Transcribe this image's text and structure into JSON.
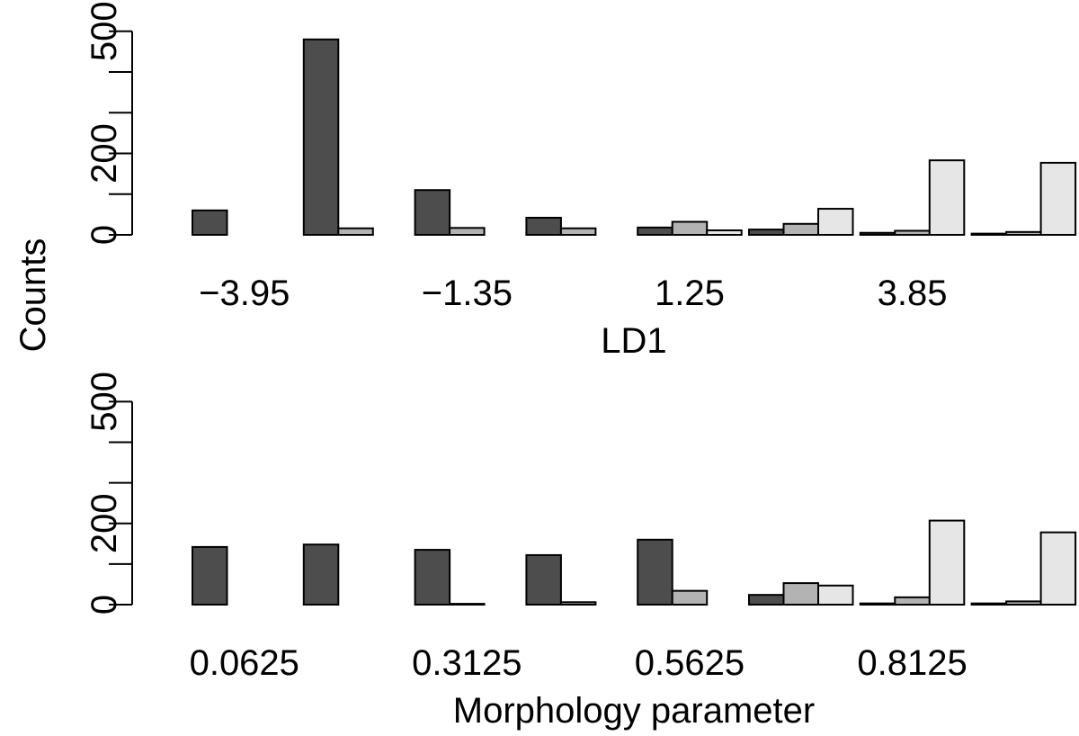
{
  "shared_ylabel": "Counts",
  "colors": {
    "series": [
      "#4d4d4d",
      "#b3b3b3",
      "#e6e6e6"
    ],
    "outline": "#000000"
  },
  "chart_data": [
    {
      "type": "bar",
      "xlabel": "LD1",
      "ylabel": "Counts",
      "ylim": [
        0,
        500
      ],
      "y_ticks": [
        0,
        200,
        500
      ],
      "y_minor_ticks": [
        100,
        300,
        400
      ],
      "grid": false,
      "legend": "none",
      "categories": [
        "-3.95",
        "-2.65",
        "-1.35",
        "-0.05",
        "1.25",
        "2.55",
        "3.85",
        "5.15"
      ],
      "tick_labels": [
        "−3.95",
        "−1.35",
        "1.25",
        "3.85"
      ],
      "tick_label_categories": [
        0,
        2,
        4,
        6
      ],
      "series": [
        {
          "values": [
            60,
            480,
            110,
            42,
            18,
            13,
            5,
            3
          ]
        },
        {
          "values": [
            0,
            16,
            17,
            16,
            32,
            27,
            10,
            7
          ]
        },
        {
          "values": [
            0,
            0,
            0,
            0,
            11,
            64,
            183,
            177
          ]
        }
      ]
    },
    {
      "type": "bar",
      "xlabel": "Morphology parameter",
      "ylabel": "Counts",
      "ylim": [
        0,
        500
      ],
      "y_ticks": [
        0,
        200,
        500
      ],
      "y_minor_ticks": [
        100,
        300,
        400
      ],
      "grid": false,
      "legend": "none",
      "categories": [
        "0.0625",
        "0.1875",
        "0.3125",
        "0.4375",
        "0.5625",
        "0.6875",
        "0.8125",
        "0.9375"
      ],
      "tick_labels": [
        "0.0625",
        "0.3125",
        "0.5625",
        "0.8125"
      ],
      "tick_label_categories": [
        0,
        2,
        4,
        6
      ],
      "series": [
        {
          "values": [
            142,
            148,
            135,
            122,
            160,
            24,
            3,
            3
          ]
        },
        {
          "values": [
            0,
            0,
            2,
            6,
            34,
            53,
            18,
            8
          ]
        },
        {
          "values": [
            0,
            0,
            0,
            0,
            0,
            47,
            207,
            178
          ]
        }
      ]
    }
  ]
}
